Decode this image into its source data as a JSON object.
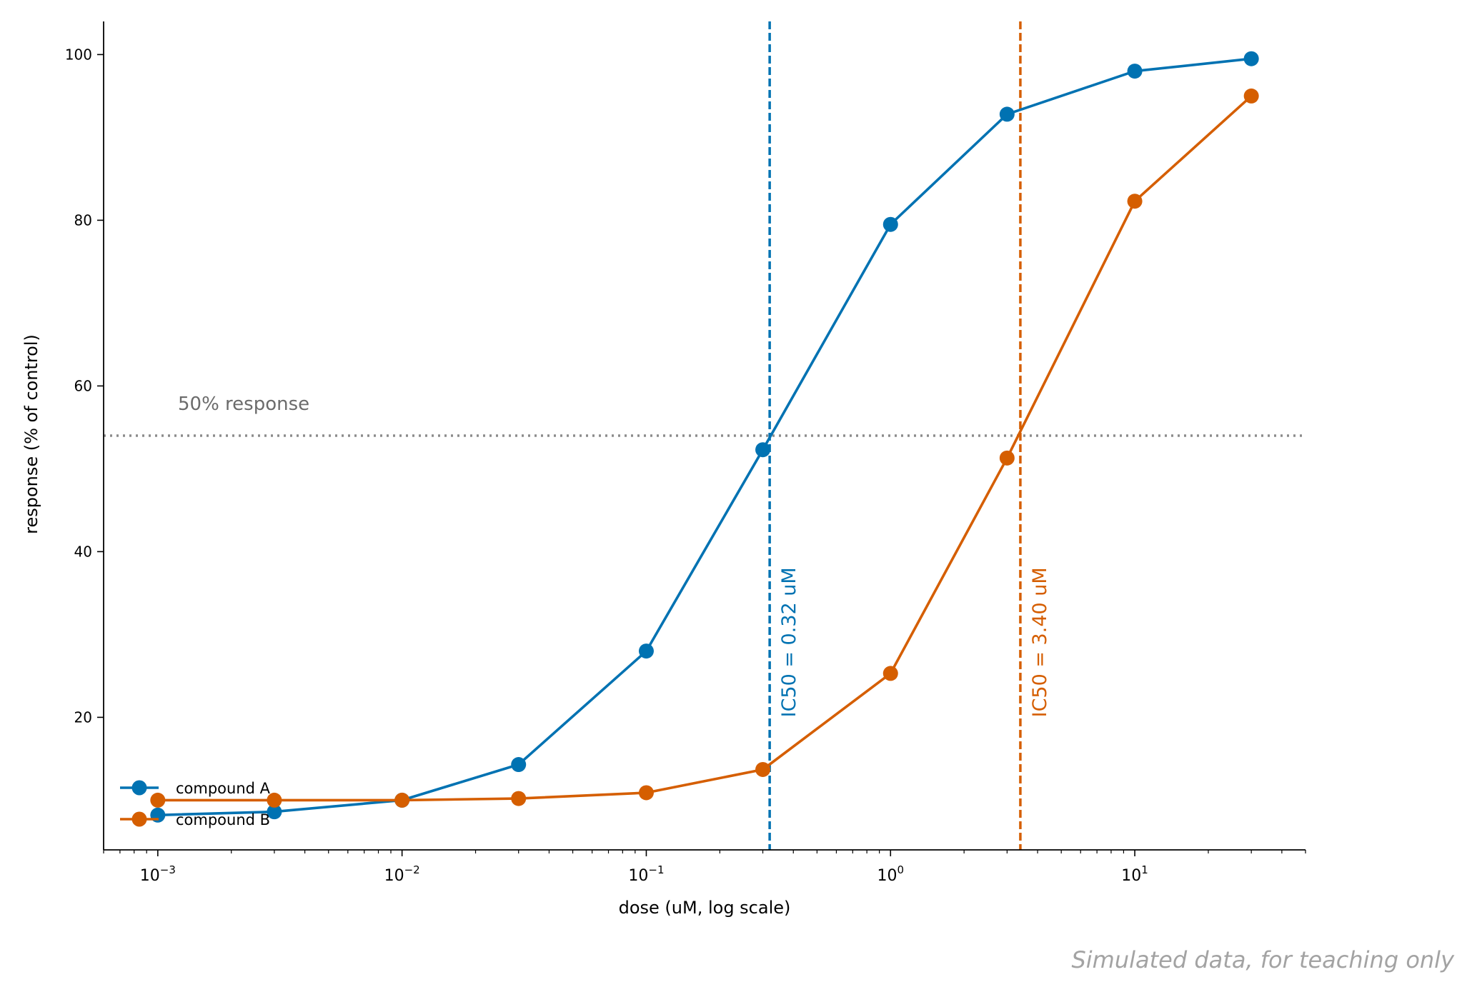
{
  "chart_data": {
    "type": "line",
    "xlabel": "dose (uM, log scale)",
    "ylabel": "response (% of control)",
    "xscale": "log",
    "xlim": [
      0.0006,
      50
    ],
    "ylim": [
      4,
      104
    ],
    "yticks": [
      20,
      40,
      60,
      80,
      100
    ],
    "xticks": [
      {
        "value": 0.001,
        "label": "10",
        "exp": "−3"
      },
      {
        "value": 0.01,
        "label": "10",
        "exp": "−2"
      },
      {
        "value": 0.1,
        "label": "10",
        "exp": "−1"
      },
      {
        "value": 1,
        "label": "10",
        "exp": "0"
      },
      {
        "value": 10,
        "label": "10",
        "exp": "1"
      }
    ],
    "grid": false,
    "legend_position": "lower-left",
    "x": [
      0.001,
      0.003,
      0.01,
      0.03,
      0.1,
      0.3,
      1,
      3,
      10,
      30
    ],
    "series": [
      {
        "name": "compound A",
        "color": "#0072B2",
        "values": [
          8.2,
          8.6,
          10.0,
          14.3,
          28.0,
          52.3,
          79.5,
          92.8,
          98.0,
          99.5
        ]
      },
      {
        "name": "compound B",
        "color": "#D55E00",
        "values": [
          10.0,
          10.0,
          10.0,
          10.2,
          10.9,
          13.7,
          25.3,
          51.3,
          82.3,
          95.0
        ]
      }
    ],
    "reference_line": {
      "y": 54,
      "label": "50% response",
      "color": "#8c8c8c"
    },
    "ic50_lines": [
      {
        "x": 0.32,
        "label": "IC50 = 0.32 uM",
        "color": "#0072B2"
      },
      {
        "x": 3.4,
        "label": "IC50 = 3.40 uM",
        "color": "#D55E00"
      }
    ]
  },
  "footer": {
    "note": "Simulated data, for teaching only"
  }
}
